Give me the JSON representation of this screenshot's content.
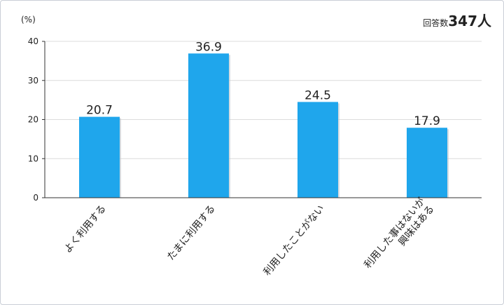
{
  "respondents": {
    "label": "回答数",
    "value": "347人"
  },
  "chart_data": {
    "type": "bar",
    "ylabel": "(%)",
    "ylim": [
      0,
      40
    ],
    "yticks": [
      0,
      10,
      20,
      30,
      40
    ],
    "grid": true,
    "categories": [
      [
        "よく利用する"
      ],
      [
        "たまに利用する"
      ],
      [
        "利用したことがない"
      ],
      [
        "利用した事はないが",
        "興味はある"
      ]
    ],
    "values": [
      20.7,
      36.9,
      24.5,
      17.9
    ],
    "value_labels": [
      "20.7",
      "36.9",
      "24.5",
      "17.9"
    ],
    "bar_color": "#1fa6ec"
  }
}
